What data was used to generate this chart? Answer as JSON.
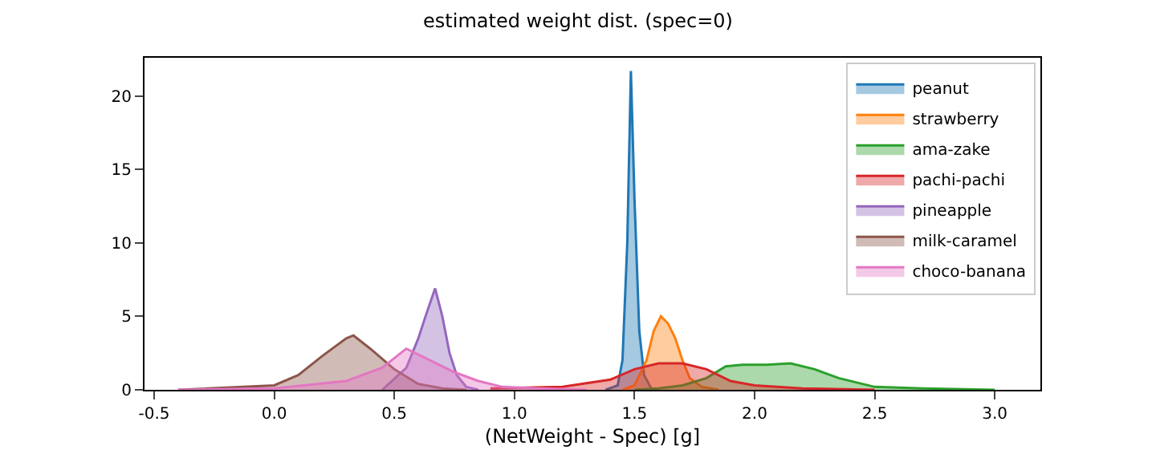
{
  "chart_data": {
    "type": "area",
    "title": "estimated weight dist. (spec=0)",
    "xlabel": "(NetWeight - Spec) [g]",
    "xlim": [
      -0.54,
      3.19
    ],
    "xticks": [
      -0.5,
      {
        "value": 0,
        "label": "0.0"
      },
      0.5,
      {
        "value": 1,
        "label": "1.0"
      },
      1.5,
      {
        "value": 2,
        "label": "2.0"
      },
      2.5,
      {
        "value": 3,
        "label": "3.0"
      }
    ],
    "ylim": [
      0,
      22.6
    ],
    "yticks": [
      0,
      5,
      10,
      15,
      20
    ],
    "legend": "top right",
    "series": [
      {
        "name": "peanut",
        "color": "#1f77b4",
        "x": [
          1.38,
          1.43,
          1.45,
          1.47,
          1.485,
          1.5,
          1.52,
          1.54,
          1.57,
          1.6
        ],
        "values": [
          0,
          0.3,
          2,
          10,
          21.7,
          13,
          4,
          1,
          0.1,
          0
        ]
      },
      {
        "name": "strawberry",
        "color": "#ff7f0e",
        "x": [
          1.45,
          1.5,
          1.55,
          1.58,
          1.61,
          1.64,
          1.67,
          1.7,
          1.73,
          1.78,
          1.85
        ],
        "values": [
          0,
          0.3,
          2.0,
          4.0,
          5.0,
          4.5,
          3.5,
          2.0,
          0.8,
          0.2,
          0
        ]
      },
      {
        "name": "ama-zake",
        "color": "#2ca02c",
        "x": [
          1.5,
          1.6,
          1.7,
          1.8,
          1.88,
          1.95,
          2.05,
          2.15,
          2.25,
          2.35,
          2.5,
          2.7,
          3.0
        ],
        "values": [
          0,
          0.1,
          0.3,
          0.8,
          1.6,
          1.7,
          1.7,
          1.8,
          1.4,
          0.8,
          0.2,
          0.1,
          0
        ]
      },
      {
        "name": "pachi-pachi",
        "color": "#d62728",
        "x": [
          0.9,
          1.2,
          1.4,
          1.5,
          1.6,
          1.7,
          1.8,
          1.9,
          2.0,
          2.2,
          2.5
        ],
        "values": [
          0.1,
          0.2,
          0.7,
          1.4,
          1.8,
          1.8,
          1.4,
          0.6,
          0.3,
          0.1,
          0
        ]
      },
      {
        "name": "pineapple",
        "color": "#9467bd",
        "x": [
          0.45,
          0.55,
          0.6,
          0.63,
          0.67,
          0.7,
          0.73,
          0.76,
          0.8,
          0.85
        ],
        "values": [
          0,
          1.5,
          3.5,
          5,
          6.9,
          5,
          2.5,
          1,
          0.2,
          0
        ]
      },
      {
        "name": "milk-caramel",
        "color": "#8c564b",
        "x": [
          -0.4,
          0.0,
          0.1,
          0.2,
          0.3,
          0.33,
          0.4,
          0.5,
          0.6,
          0.7,
          0.8
        ],
        "values": [
          0,
          0.3,
          1.0,
          2.3,
          3.5,
          3.7,
          2.8,
          1.4,
          0.4,
          0.1,
          0
        ]
      },
      {
        "name": "choco-banana",
        "color": "#e377c2",
        "x": [
          -0.4,
          0.0,
          0.3,
          0.45,
          0.55,
          0.65,
          0.75,
          0.85,
          0.95,
          1.1,
          1.3
        ],
        "values": [
          0,
          0.1,
          0.6,
          1.5,
          2.8,
          2.0,
          1.2,
          0.6,
          0.2,
          0.1,
          0
        ]
      }
    ]
  }
}
